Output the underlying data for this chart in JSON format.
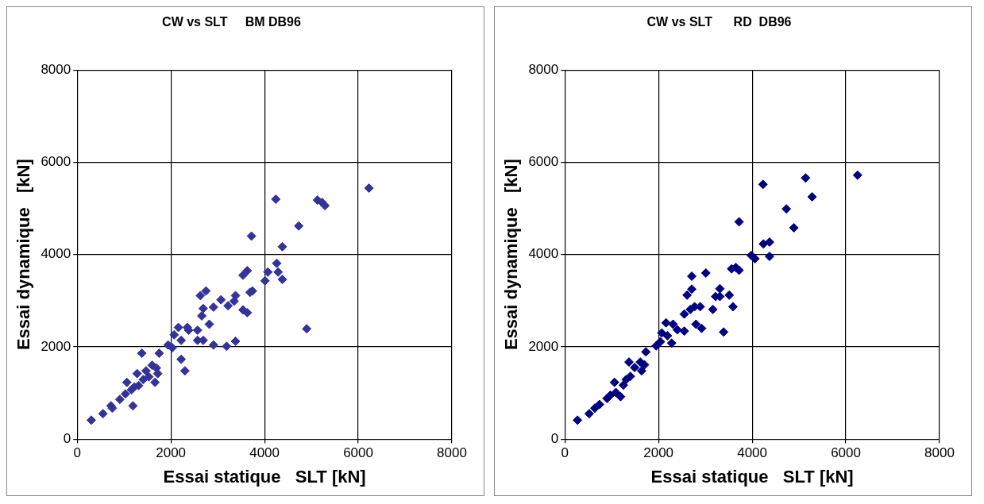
{
  "chart_data": [
    {
      "type": "scatter",
      "title": "CW vs SLT     BM DB96",
      "xlabel": "Essai statique   SLT [kN]",
      "ylabel": "Essai dynamique   [kN]",
      "xlim": [
        0,
        8000
      ],
      "ylim": [
        0,
        8000
      ],
      "xticks": [
        0,
        2000,
        4000,
        6000,
        8000
      ],
      "yticks": [
        0,
        2000,
        4000,
        6000,
        8000
      ],
      "grid": true,
      "legend": false,
      "marker": "diamond",
      "series": [
        {
          "color": "#333399",
          "x": [
            300,
            550,
            720,
            750,
            910,
            1030,
            1060,
            1160,
            1190,
            1220,
            1280,
            1310,
            1380,
            1410,
            1470,
            1530,
            1600,
            1660,
            1690,
            1720,
            1750,
            1940,
            2030,
            2070,
            2160,
            2220,
            2220,
            2300,
            2350,
            2380,
            2570,
            2570,
            2690,
            2660,
            2690,
            2630,
            2750,
            2820,
            2910,
            2910,
            3070,
            3190,
            3220,
            3350,
            3380,
            3380,
            3540,
            3630,
            3540,
            3630,
            3690,
            3740,
            3720,
            4010,
            4070,
            4260,
            4290,
            4380,
            4380,
            4240,
            4730,
            4900,
            5130,
            5230,
            5290,
            6230
          ],
          "values": [
            410,
            550,
            720,
            670,
            860,
            980,
            1230,
            1070,
            720,
            1130,
            1420,
            1160,
            1860,
            1290,
            1480,
            1350,
            1600,
            1230,
            1540,
            1420,
            1860,
            2040,
            1980,
            2260,
            2420,
            2140,
            1730,
            1480,
            2420,
            2360,
            2360,
            2140,
            2140,
            2670,
            2830,
            3110,
            3210,
            2490,
            2860,
            2040,
            3020,
            2010,
            2890,
            2990,
            3110,
            2120,
            2800,
            2740,
            3550,
            3650,
            3180,
            3210,
            4400,
            3430,
            3620,
            3810,
            3620,
            3460,
            4170,
            5200,
            4620,
            2390,
            5180,
            5130,
            5060,
            5440
          ]
        }
      ]
    },
    {
      "type": "scatter",
      "title": "CW vs SLT      RD  DB96",
      "xlabel": "Essai statique   SLT [kN]",
      "ylabel": "Essai dynamique   [kN]",
      "xlim": [
        0,
        8000
      ],
      "ylim": [
        0,
        8000
      ],
      "xticks": [
        0,
        2000,
        4000,
        6000,
        8000
      ],
      "yticks": [
        0,
        2000,
        4000,
        6000,
        8000
      ],
      "grid": true,
      "legend": false,
      "marker": "diamond",
      "series": [
        {
          "color": "#000080",
          "x": [
            270,
            520,
            640,
            740,
            900,
            970,
            1060,
            1090,
            1190,
            1250,
            1310,
            1370,
            1400,
            1490,
            1610,
            1640,
            1700,
            1730,
            1950,
            2040,
            2070,
            2160,
            2190,
            2280,
            2310,
            2400,
            2550,
            2550,
            2610,
            2710,
            2710,
            2680,
            2770,
            2800,
            2890,
            2920,
            3010,
            3160,
            3220,
            3310,
            3310,
            3390,
            3510,
            3590,
            3560,
            3650,
            3720,
            3720,
            3980,
            4060,
            4230,
            4240,
            4370,
            4370,
            4730,
            4890,
            5140,
            5280,
            6250
          ],
          "values": [
            410,
            550,
            670,
            750,
            880,
            950,
            1230,
            1010,
            920,
            1170,
            1290,
            1670,
            1360,
            1550,
            1670,
            1480,
            1610,
            1890,
            2020,
            2110,
            2300,
            2520,
            2240,
            2080,
            2490,
            2370,
            2340,
            2710,
            3120,
            3250,
            3530,
            2810,
            2870,
            2490,
            2870,
            2400,
            3600,
            2810,
            3090,
            3260,
            3090,
            2320,
            3120,
            2870,
            3690,
            3720,
            3660,
            4710,
            3980,
            3910,
            5520,
            4230,
            4270,
            3960,
            4990,
            4580,
            5660,
            5250,
            5720
          ]
        }
      ]
    }
  ]
}
